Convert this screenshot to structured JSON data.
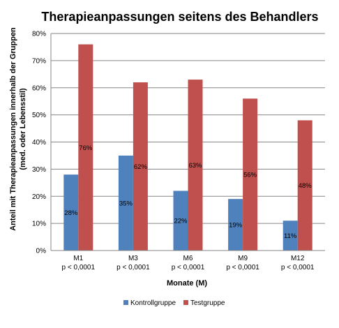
{
  "chart_data": {
    "type": "bar",
    "title": "Therapieanpassungen seitens des Behandlers",
    "xlabel": "Monate (M)",
    "ylabel_line1": "Anteil mit Therapieanpassungen  innerhalb der Gruppen",
    "ylabel_line2": "(med. oder Lebensstil)",
    "categories": [
      "M1",
      "M3",
      "M6",
      "M9",
      "M12"
    ],
    "category_sublabels": [
      "p < 0,0001",
      "p < 0,0001",
      "p < 0,0001",
      "p < 0,0001",
      "p < 0,0001"
    ],
    "y_ticks": [
      "0%",
      "10%",
      "20%",
      "30%",
      "40%",
      "50%",
      "60%",
      "70%",
      "80%"
    ],
    "ylim": [
      0,
      80
    ],
    "grid": true,
    "legend_position": "bottom",
    "series": [
      {
        "name": "Kontrollgruppe",
        "color": "#4F81BD",
        "values": [
          28,
          35,
          22,
          19,
          11
        ],
        "labels": [
          "28%",
          "35%",
          "22%",
          "19%",
          "11%"
        ]
      },
      {
        "name": "Testgruppe",
        "color": "#C0504D",
        "values": [
          76,
          62,
          63,
          56,
          48
        ],
        "labels": [
          "76%",
          "62%",
          "63%",
          "56%",
          "48%"
        ]
      }
    ]
  }
}
